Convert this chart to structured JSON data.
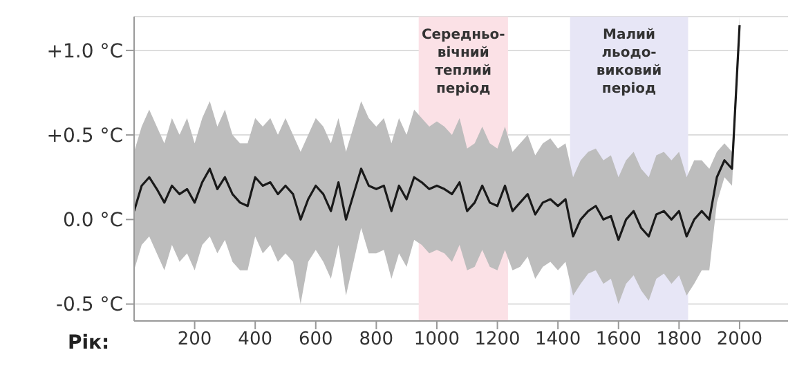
{
  "chart_data": {
    "type": "line",
    "xlabel": "Рік:",
    "xlim": [
      0,
      2160
    ],
    "xticks": [
      200,
      400,
      600,
      800,
      1000,
      1200,
      1400,
      1600,
      1800,
      2000
    ],
    "ylim": [
      -0.6,
      1.2
    ],
    "yticks": [
      {
        "value": -0.5,
        "label": "-0.5 °C"
      },
      {
        "value": 0,
        "label": "0.0 °C"
      },
      {
        "value": 0.5,
        "label": "+0.5 °C"
      },
      {
        "value": 1,
        "label": "+1.0 °C"
      }
    ],
    "grid": "y",
    "marker": "none",
    "line_style": "solid",
    "x": [
      0,
      25,
      50,
      75,
      100,
      125,
      150,
      175,
      200,
      225,
      250,
      275,
      300,
      325,
      350,
      375,
      400,
      425,
      450,
      475,
      500,
      525,
      550,
      575,
      600,
      625,
      650,
      675,
      700,
      725,
      750,
      775,
      800,
      825,
      850,
      875,
      900,
      925,
      950,
      975,
      1000,
      1025,
      1050,
      1075,
      1100,
      1125,
      1150,
      1175,
      1200,
      1225,
      1250,
      1275,
      1300,
      1325,
      1350,
      1375,
      1400,
      1425,
      1450,
      1475,
      1500,
      1525,
      1550,
      1575,
      1600,
      1625,
      1650,
      1675,
      1700,
      1725,
      1750,
      1775,
      1800,
      1825,
      1850,
      1875,
      1900,
      1925,
      1950,
      1975,
      2000
    ],
    "series": [
      {
        "color": "#1a1a1a",
        "values": [
          0.05,
          0.2,
          0.25,
          0.18,
          0.1,
          0.2,
          0.15,
          0.18,
          0.1,
          0.22,
          0.3,
          0.18,
          0.25,
          0.15,
          0.1,
          0.08,
          0.25,
          0.2,
          0.22,
          0.15,
          0.2,
          0.15,
          0.0,
          0.12,
          0.2,
          0.15,
          0.05,
          0.22,
          0.0,
          0.15,
          0.3,
          0.2,
          0.18,
          0.2,
          0.05,
          0.2,
          0.12,
          0.25,
          0.22,
          0.18,
          0.2,
          0.18,
          0.15,
          0.22,
          0.05,
          0.1,
          0.2,
          0.1,
          0.08,
          0.2,
          0.05,
          0.1,
          0.15,
          0.03,
          0.1,
          0.12,
          0.08,
          0.12,
          -0.1,
          0.0,
          0.05,
          0.08,
          0.0,
          0.02,
          -0.12,
          0.0,
          0.05,
          -0.05,
          -0.1,
          0.03,
          0.05,
          0.0,
          0.05,
          -0.1,
          0.0,
          0.05,
          0.0,
          0.25,
          0.35,
          0.3,
          1.15
        ],
        "lower": [
          -0.3,
          -0.15,
          -0.1,
          -0.2,
          -0.3,
          -0.15,
          -0.25,
          -0.2,
          -0.3,
          -0.15,
          -0.1,
          -0.2,
          -0.12,
          -0.25,
          -0.3,
          -0.3,
          -0.1,
          -0.2,
          -0.15,
          -0.25,
          -0.2,
          -0.25,
          -0.5,
          -0.25,
          -0.18,
          -0.25,
          -0.35,
          -0.15,
          -0.45,
          -0.25,
          -0.05,
          -0.2,
          -0.2,
          -0.18,
          -0.35,
          -0.2,
          -0.28,
          -0.12,
          -0.15,
          -0.2,
          -0.18,
          -0.2,
          -0.25,
          -0.15,
          -0.3,
          -0.28,
          -0.18,
          -0.28,
          -0.3,
          -0.18,
          -0.3,
          -0.28,
          -0.22,
          -0.35,
          -0.28,
          -0.25,
          -0.3,
          -0.25,
          -0.45,
          -0.38,
          -0.32,
          -0.3,
          -0.38,
          -0.35,
          -0.5,
          -0.38,
          -0.33,
          -0.42,
          -0.48,
          -0.35,
          -0.32,
          -0.38,
          -0.33,
          -0.45,
          -0.38,
          -0.3,
          -0.3,
          0.1,
          0.25,
          0.2,
          1.1
        ],
        "upper": [
          0.4,
          0.55,
          0.65,
          0.55,
          0.45,
          0.6,
          0.5,
          0.6,
          0.45,
          0.6,
          0.7,
          0.55,
          0.65,
          0.5,
          0.45,
          0.45,
          0.6,
          0.55,
          0.6,
          0.5,
          0.6,
          0.5,
          0.4,
          0.5,
          0.6,
          0.55,
          0.45,
          0.6,
          0.4,
          0.55,
          0.7,
          0.6,
          0.55,
          0.6,
          0.45,
          0.6,
          0.5,
          0.65,
          0.6,
          0.55,
          0.58,
          0.55,
          0.5,
          0.6,
          0.42,
          0.45,
          0.55,
          0.45,
          0.42,
          0.55,
          0.4,
          0.45,
          0.5,
          0.38,
          0.45,
          0.48,
          0.42,
          0.45,
          0.25,
          0.35,
          0.4,
          0.42,
          0.35,
          0.38,
          0.25,
          0.35,
          0.4,
          0.3,
          0.25,
          0.38,
          0.4,
          0.35,
          0.4,
          0.25,
          0.35,
          0.35,
          0.3,
          0.4,
          0.45,
          0.4,
          1.2
        ]
      }
    ],
    "bands": [
      {
        "axis": "x",
        "from": 940,
        "to": 1235,
        "label": "Середньо-\nвічний\nтеплий\nперіод",
        "color": "#fbe1e6"
      },
      {
        "axis": "x",
        "from": 1440,
        "to": 1830,
        "label": "Малий\nльодо-\nвиковий\nперіод",
        "color": "#e7e6f6"
      }
    ]
  }
}
